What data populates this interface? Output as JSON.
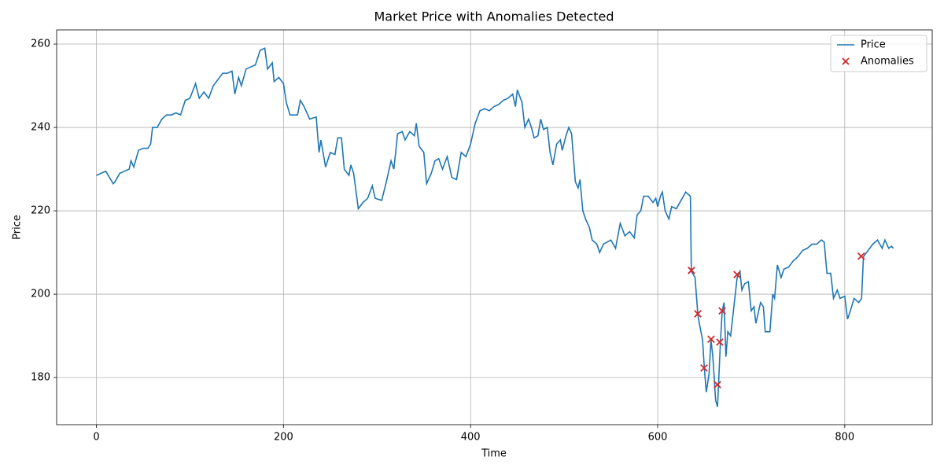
{
  "chart_data": {
    "type": "line",
    "title": "Market Price with Anomalies Detected",
    "xlabel": "Time",
    "ylabel": "Price",
    "xlim": [
      -42.5,
      893.5
    ],
    "ylim": [
      168.7,
      263.4
    ],
    "xticks": [
      0,
      200,
      400,
      600,
      800
    ],
    "yticks": [
      180,
      200,
      220,
      240,
      260
    ],
    "grid": true,
    "legend": "upper right",
    "series": [
      {
        "name": "Price",
        "type": "line",
        "color": "#1f77b4",
        "x": [
          0,
          10,
          18,
          20,
          25,
          30,
          35,
          37,
          40,
          45,
          50,
          55,
          58,
          60,
          65,
          70,
          75,
          80,
          85,
          90,
          95,
          100,
          106,
          110,
          115,
          120,
          125,
          130,
          135,
          140,
          145,
          148,
          152,
          155,
          160,
          165,
          170,
          175,
          180,
          183,
          188,
          190,
          195,
          200,
          203,
          207,
          212,
          215,
          218,
          222,
          228,
          235,
          238,
          240,
          245,
          250,
          255,
          258,
          262,
          265,
          270,
          272,
          275,
          280,
          285,
          290,
          295,
          298,
          305,
          310,
          315,
          318,
          322,
          327,
          330,
          335,
          340,
          342,
          345,
          350,
          353,
          358,
          362,
          366,
          370,
          375,
          380,
          385,
          390,
          395,
          400,
          405,
          410,
          415,
          420,
          425,
          430,
          435,
          440,
          445,
          448,
          450,
          455,
          458,
          462,
          465,
          468,
          472,
          475,
          478,
          482,
          485,
          488,
          492,
          496,
          498,
          502,
          505,
          508,
          512,
          515,
          517,
          520,
          523,
          527,
          530,
          535,
          538,
          542,
          546,
          550,
          555,
          560,
          565,
          570,
          575,
          578,
          582,
          585,
          590,
          595,
          598,
          600,
          603,
          605,
          608,
          612,
          615,
          620,
          625,
          630,
          635,
          636,
          640,
          643,
          645,
          648,
          650,
          652,
          655,
          657,
          659,
          662,
          664,
          665,
          667,
          669,
          671,
          673,
          675,
          678,
          682,
          685,
          688,
          690,
          693,
          697,
          700,
          703,
          705,
          710,
          713,
          715,
          720,
          723,
          725,
          728,
          732,
          735,
          740,
          745,
          750,
          755,
          760,
          765,
          770,
          775,
          778,
          781,
          785,
          788,
          792,
          795,
          800,
          803,
          806,
          810,
          815,
          818,
          820,
          825,
          830,
          835,
          840,
          843,
          847,
          850,
          852
        ],
        "values": [
          228.5,
          229.5,
          226.5,
          227,
          229,
          229.5,
          230,
          232,
          230.5,
          234.5,
          235,
          235,
          236,
          240,
          240,
          242,
          243,
          243,
          243.5,
          243,
          246.5,
          247,
          250.5,
          247,
          248.5,
          247,
          250,
          251.5,
          253,
          253,
          253.5,
          248,
          252,
          250,
          254,
          254.5,
          255,
          258.5,
          259,
          254,
          255.5,
          251,
          252,
          250.5,
          246,
          243,
          243,
          243,
          246.5,
          245,
          242,
          242.5,
          234,
          237,
          230.5,
          234,
          233.5,
          237.5,
          237.5,
          230,
          228.5,
          231,
          229,
          220.5,
          222,
          223,
          226,
          223,
          222.5,
          227,
          232,
          230,
          238.5,
          239,
          237,
          239,
          238,
          241,
          235.5,
          234,
          226.5,
          229,
          232,
          232.5,
          230,
          233,
          228,
          227.5,
          234,
          233,
          236,
          241,
          244,
          244.5,
          244,
          245,
          245.5,
          246.5,
          247,
          248,
          245,
          249,
          246,
          240,
          242,
          240,
          237.5,
          238,
          242,
          239.5,
          240,
          234,
          231,
          236,
          237,
          234.5,
          238,
          240,
          238.5,
          227,
          225.5,
          227.5,
          220,
          218,
          216,
          213,
          212,
          210,
          212,
          212.5,
          213,
          211,
          217,
          214,
          215,
          213.5,
          219,
          220,
          223.5,
          223.5,
          222,
          223,
          221,
          223.5,
          224.5,
          220,
          218,
          221,
          220.5,
          222.5,
          224.5,
          223.5,
          205.5,
          204,
          195,
          192.5,
          189,
          182,
          176.5,
          181,
          189,
          185,
          174.5,
          173,
          178,
          188,
          196,
          198,
          185,
          191,
          190,
          198,
          204,
          205.5,
          201,
          202.5,
          203,
          196,
          197,
          193,
          198,
          197,
          191,
          191,
          200,
          199,
          207,
          204,
          206,
          206.5,
          208,
          209,
          210.5,
          211,
          212,
          212,
          213,
          212.5,
          205,
          205,
          199,
          201,
          199,
          199.5,
          194,
          196,
          199,
          198,
          199,
          209,
          210.5,
          212,
          213,
          211,
          213,
          211,
          211.5,
          211
        ]
      },
      {
        "name": "Anomalies",
        "type": "scatter",
        "marker": "x",
        "color": "#d62728",
        "x": [
          636.1,
          642.9,
          649.6,
          657.1,
          663.9,
          666.4,
          669.0,
          684.9,
          817.6
        ],
        "values": [
          205.7,
          195.3,
          182.3,
          189.2,
          178.3,
          188.5,
          196.0,
          204.7,
          209.1
        ]
      }
    ]
  }
}
